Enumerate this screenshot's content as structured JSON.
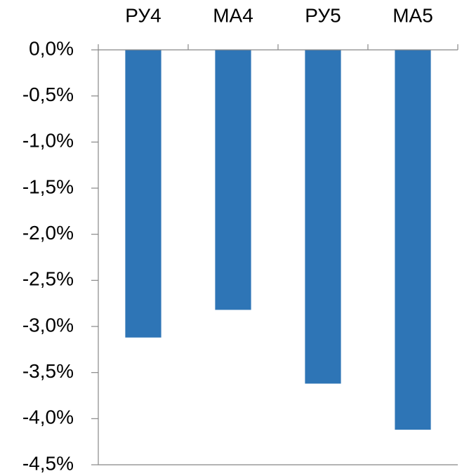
{
  "chart_data": {
    "type": "bar",
    "categories": [
      "РУ4",
      "МА4",
      "РУ5",
      "МА5"
    ],
    "values": [
      -3.12,
      -2.82,
      -3.62,
      -4.12
    ],
    "color": "#2e75b6",
    "ylim": [
      -4.5,
      0
    ],
    "yticks": [
      {
        "value": 0,
        "label": "0,0%"
      },
      {
        "value": -0.5,
        "label": "-0,5%"
      },
      {
        "value": -1,
        "label": "-1,0%"
      },
      {
        "value": -1.5,
        "label": "-1,5%"
      },
      {
        "value": -2,
        "label": "-2,0%"
      },
      {
        "value": -2.5,
        "label": "-2,5%"
      },
      {
        "value": -3,
        "label": "-3,0%"
      },
      {
        "value": -3.5,
        "label": "-3,5%"
      },
      {
        "value": -4,
        "label": "-4,0%"
      },
      {
        "value": -4.5,
        "label": "-4,5%"
      }
    ],
    "grid": false
  }
}
